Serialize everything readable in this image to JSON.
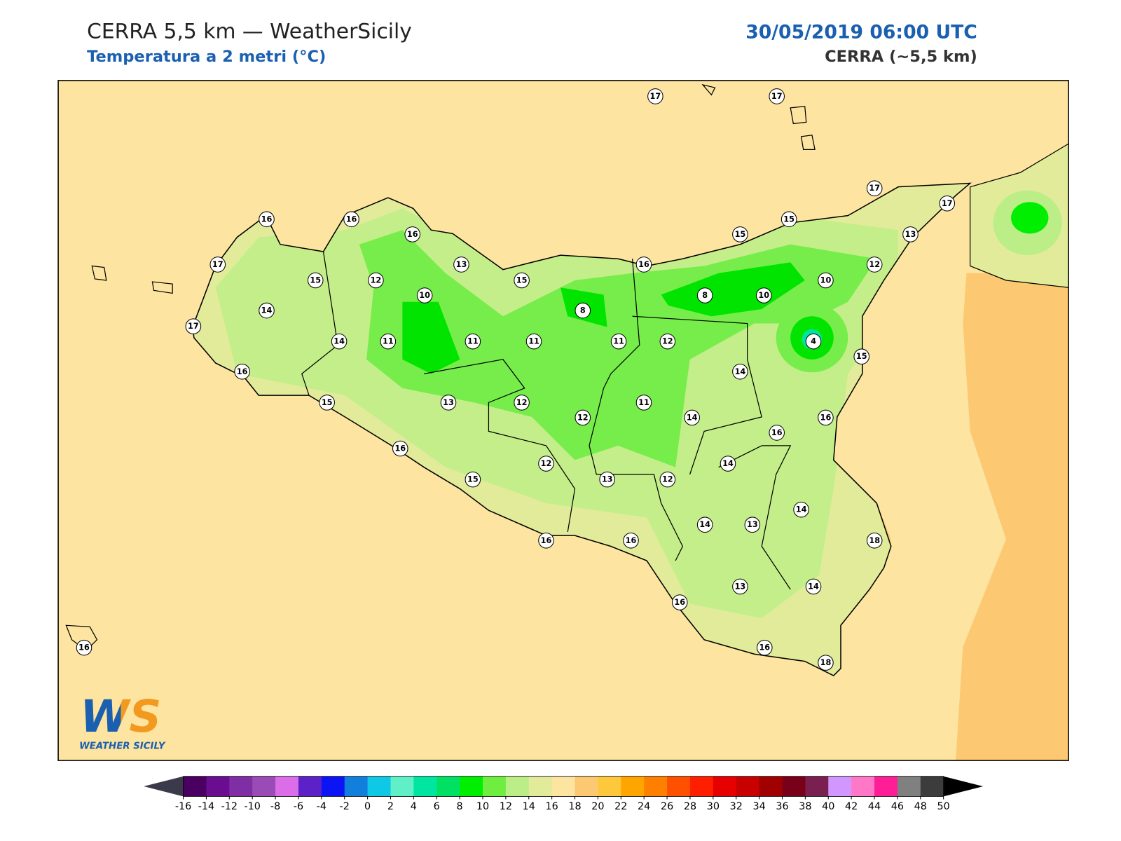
{
  "header": {
    "title": "CERRA 5,5 km — WeatherSicily",
    "subtitle": "Temperatura a 2 metri (°C)",
    "date": "30/05/2019 06:00 UTC",
    "model": "CERRA (~5,5 km)"
  },
  "stations": [
    17,
    17,
    16,
    16,
    16,
    17,
    17,
    15,
    15,
    13,
    17,
    15,
    12,
    13,
    15,
    16,
    12,
    10,
    10,
    8,
    10,
    8,
    14,
    17,
    14,
    11,
    11,
    11,
    11,
    12,
    4,
    15,
    16,
    14,
    15,
    13,
    12,
    11,
    12,
    14,
    16,
    16,
    16,
    12,
    14,
    15,
    13,
    12,
    14,
    14,
    13,
    18,
    16,
    16,
    13,
    14,
    16,
    16,
    18,
    16
  ],
  "colorbar": {
    "ticks": [
      -16,
      -14,
      -12,
      -10,
      -8,
      -6,
      -4,
      -2,
      0,
      2,
      4,
      6,
      8,
      10,
      12,
      14,
      16,
      18,
      20,
      22,
      24,
      26,
      28,
      30,
      32,
      34,
      36,
      38,
      40,
      42,
      44,
      46,
      48,
      50
    ],
    "colors": [
      "#4a0060",
      "#6a0d91",
      "#7f2fa3",
      "#9b4bb5",
      "#db6ee8",
      "#5c22c8",
      "#0a14f5",
      "#137fdc",
      "#0fc8e6",
      "#5ff0c8",
      "#00e6a0",
      "#00e164",
      "#00ee00",
      "#70ee40",
      "#bcee88",
      "#e2eb9a",
      "#fde4a0",
      "#fdc872",
      "#fdc83c",
      "#ffa500",
      "#ff8000",
      "#ff5000",
      "#ff1e00",
      "#e60000",
      "#c80000",
      "#a00000",
      "#780018",
      "#7a2050",
      "#d296ff",
      "#ff78c8",
      "#ff1e96",
      "#808080",
      "#3c3c3c"
    ],
    "under_color": "#3a3a4a",
    "over_color": "#000000"
  },
  "logo": {
    "initials": "WS",
    "name": "WEATHER SICILY"
  }
}
